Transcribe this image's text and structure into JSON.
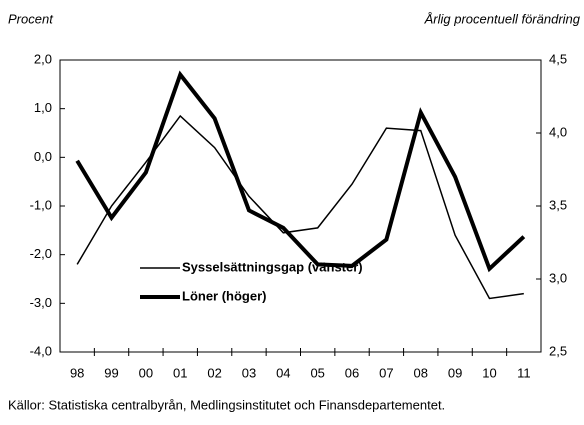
{
  "chart_data": {
    "type": "line",
    "ylabel": "Procent",
    "y2label": "Årlig procentuell förändring",
    "source": "Källor: Statistiska centralbyrån, Medlingsinstitutet och Finansdepartementet.",
    "categories": [
      "98",
      "99",
      "00",
      "01",
      "02",
      "03",
      "04",
      "05",
      "06",
      "07",
      "08",
      "09",
      "10",
      "11"
    ],
    "series": [
      {
        "name": "Sysselsättningsgap (vänster)",
        "color": "#000000",
        "width": 1.5,
        "values": [
          -2.2,
          -1.0,
          -0.1,
          0.85,
          0.2,
          -0.8,
          -1.55,
          -1.45,
          -0.55,
          0.6,
          0.55,
          -1.6,
          -2.9,
          -2.8
        ]
      },
      {
        "name": "Löner (höger)",
        "color": "#000000",
        "width": 4,
        "axis": "y2",
        "values": [
          3.81,
          3.42,
          3.73,
          4.4,
          4.1,
          3.47,
          3.35,
          3.1,
          3.09,
          3.27,
          4.14,
          3.7,
          3.07,
          3.29
        ]
      }
    ],
    "ylim": [
      -4,
      2
    ],
    "yticks": [
      {
        "value": -4,
        "label": "-4,0"
      },
      {
        "value": -3,
        "label": "-3,0"
      },
      {
        "value": -2,
        "label": "-2,0"
      },
      {
        "value": -1,
        "label": "-1,0"
      },
      {
        "value": 0,
        "label": "0,0"
      },
      {
        "value": 1,
        "label": "1,0"
      },
      {
        "value": 2,
        "label": "2,0"
      }
    ],
    "y2lim": [
      2.5,
      4.5
    ],
    "y2ticks": [
      {
        "value": 2.5,
        "label": "2,5"
      },
      {
        "value": 3,
        "label": "3,0"
      },
      {
        "value": 3.5,
        "label": "3,5"
      },
      {
        "value": 4,
        "label": "4,0"
      },
      {
        "value": 4.5,
        "label": "4,5"
      }
    ],
    "grid": false,
    "legend": "lower left"
  }
}
